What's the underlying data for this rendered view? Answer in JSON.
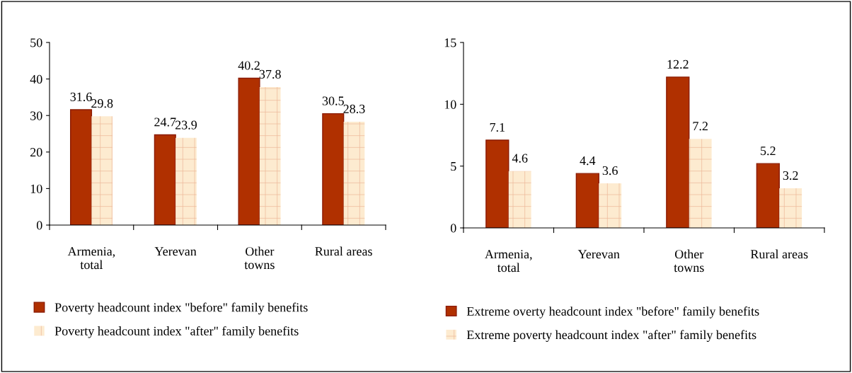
{
  "chart_data": [
    {
      "type": "bar",
      "categories": [
        "Armenia,\ntotal",
        "Yerevan",
        "Other\ntowns",
        "Rural areas"
      ],
      "ylim": [
        0,
        50
      ],
      "yticks": [
        0,
        10,
        20,
        30,
        40,
        50
      ],
      "data_labels": true,
      "grid": false,
      "legend": "bottom",
      "series": [
        {
          "name": "Poverty headcount index \"before\" family benefits",
          "color": "#b03000",
          "values": [
            31.6,
            24.7,
            40.2,
            30.5
          ]
        },
        {
          "name": "Poverty headcount index \"after\" family benefits",
          "color": "#fdebd0",
          "values": [
            29.8,
            23.9,
            37.8,
            28.3
          ]
        }
      ]
    },
    {
      "type": "bar",
      "categories": [
        "Armenia,\ntotal",
        "Yerevan",
        "Other\ntowns",
        "Rural areas"
      ],
      "ylim": [
        0,
        15
      ],
      "yticks": [
        0,
        5,
        10,
        15
      ],
      "data_labels": true,
      "grid": false,
      "legend": "bottom",
      "series": [
        {
          "name": "Extreme overty headcount index \"before\" family benefits",
          "color": "#b03000",
          "values": [
            7.1,
            4.4,
            12.2,
            5.2
          ]
        },
        {
          "name": "Extreme poverty headcount index \"after\" family benefits",
          "color": "#fdebd0",
          "values": [
            4.6,
            3.6,
            7.2,
            3.2
          ]
        }
      ]
    }
  ]
}
